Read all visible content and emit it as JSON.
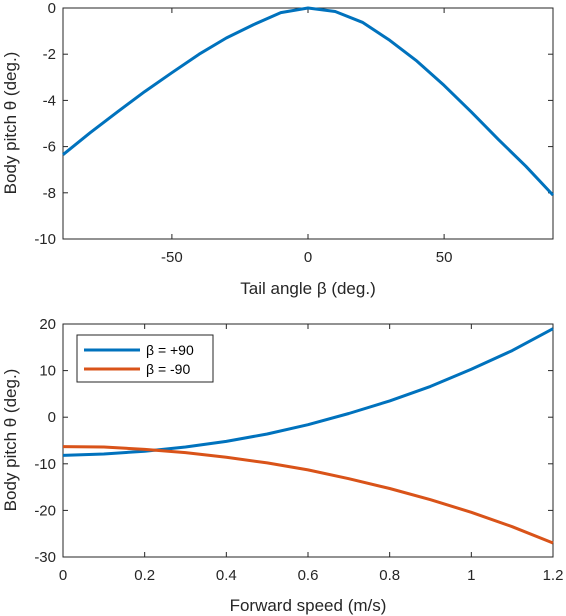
{
  "chart_data": [
    {
      "type": "line",
      "xlabel": "Tail angle β (deg.)",
      "ylabel": "Body pitch θ (deg.)",
      "xlim": [
        -90,
        90
      ],
      "ylim": [
        -10,
        0
      ],
      "xticks": [
        -50,
        0,
        50
      ],
      "yticks": [
        0,
        -2,
        -4,
        -6,
        -8,
        -10
      ],
      "xtick_labels": [
        "-50",
        "0",
        "50"
      ],
      "ytick_labels": [
        "0",
        "-2",
        "-4",
        "-6",
        "-8",
        "-10"
      ],
      "grid": false,
      "series": [
        {
          "color": "#0072BD",
          "x": [
            -90,
            -80,
            -70,
            -60,
            -50,
            -40,
            -30,
            -20,
            -10,
            0,
            10,
            20,
            30,
            40,
            50,
            60,
            70,
            80,
            90
          ],
          "y": [
            -6.35,
            -5.4,
            -4.5,
            -3.62,
            -2.8,
            -2.0,
            -1.3,
            -0.72,
            -0.2,
            0.0,
            -0.15,
            -0.62,
            -1.4,
            -2.3,
            -3.35,
            -4.5,
            -5.7,
            -6.85,
            -8.1
          ]
        }
      ]
    },
    {
      "type": "line",
      "xlabel": "Forward speed (m/s)",
      "ylabel": "Body pitch θ (deg.)",
      "xlim": [
        0,
        1.2
      ],
      "ylim": [
        -30,
        20
      ],
      "xticks": [
        0,
        0.2,
        0.4,
        0.6,
        0.8,
        1,
        1.2
      ],
      "yticks": [
        20,
        10,
        0,
        -10,
        -20,
        -30
      ],
      "xtick_labels": [
        "0",
        "0.2",
        "0.4",
        "0.6",
        "0.8",
        "1",
        "1.2"
      ],
      "ytick_labels": [
        "20",
        "10",
        "0",
        "-10",
        "-20",
        "-30"
      ],
      "grid": false,
      "legend_position": "top-left",
      "series": [
        {
          "name": "β = +90",
          "color": "#0072BD",
          "x": [
            0,
            0.1,
            0.2,
            0.3,
            0.4,
            0.5,
            0.6,
            0.7,
            0.8,
            0.9,
            1.0,
            1.1,
            1.2
          ],
          "y": [
            -8.2,
            -7.9,
            -7.3,
            -6.4,
            -5.2,
            -3.6,
            -1.6,
            0.8,
            3.5,
            6.6,
            10.3,
            14.3,
            19.0
          ]
        },
        {
          "name": "β = -90",
          "color": "#D95319",
          "x": [
            0,
            0.1,
            0.2,
            0.3,
            0.4,
            0.5,
            0.6,
            0.7,
            0.8,
            0.9,
            1.0,
            1.1,
            1.2
          ],
          "y": [
            -6.3,
            -6.4,
            -6.9,
            -7.6,
            -8.6,
            -9.8,
            -11.3,
            -13.2,
            -15.3,
            -17.7,
            -20.4,
            -23.5,
            -27.0
          ]
        }
      ]
    }
  ]
}
